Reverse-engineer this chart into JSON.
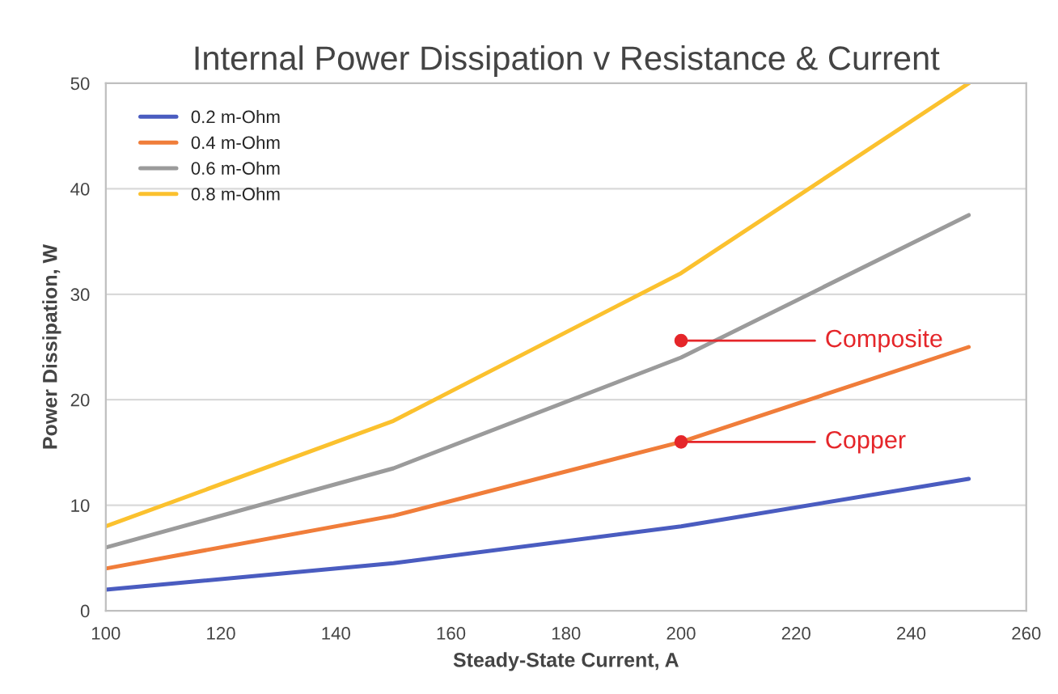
{
  "chart_data": {
    "type": "line",
    "title": "Internal Power Dissipation v Resistance & Current",
    "xlabel": "Steady-State Current, A",
    "ylabel": "Power Dissipation, W",
    "x": [
      100,
      150,
      200,
      250
    ],
    "series": [
      {
        "name": "0.2 m-Ohm",
        "color": "#4a5cc0",
        "values": [
          2,
          4.5,
          8,
          12.5
        ]
      },
      {
        "name": "0.4 m-Ohm",
        "color": "#f07d3a",
        "values": [
          4,
          9,
          16,
          25
        ]
      },
      {
        "name": "0.6 m-Ohm",
        "color": "#9b9b9b",
        "values": [
          6,
          13.5,
          24,
          37.5
        ]
      },
      {
        "name": "0.8 m-Ohm",
        "color": "#fbc12e",
        "values": [
          8,
          18,
          32,
          50
        ]
      },
      {
        "type": "scatter",
        "marker": "circle",
        "color": "#e5262a",
        "x": [
          200,
          200
        ],
        "values": [
          25.6,
          16
        ]
      }
    ],
    "annotations": [
      {
        "text": "Composite",
        "x": 200,
        "y": 25.6
      },
      {
        "text": "Copper",
        "x": 200,
        "y": 16
      }
    ],
    "xlim": [
      100,
      260
    ],
    "xticks": [
      100,
      120,
      140,
      160,
      180,
      200,
      220,
      240,
      260
    ],
    "ylim": [
      0,
      50
    ],
    "yticks": [
      0,
      10,
      20,
      30,
      40,
      50
    ],
    "grid": "y",
    "legend": "top left",
    "marker": "none",
    "line_style": "solid"
  }
}
